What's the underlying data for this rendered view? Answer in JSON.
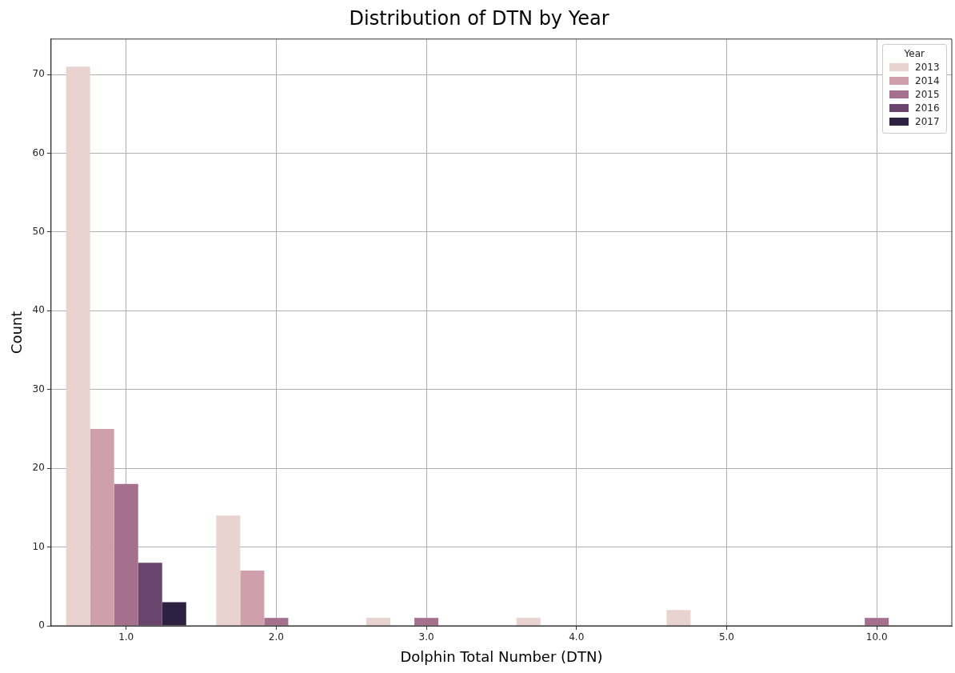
{
  "chart_data": {
    "type": "bar",
    "title": "Distribution of DTN by Year",
    "xlabel": "Dolphin Total Number (DTN)",
    "ylabel": "Count",
    "legend_title": "Year",
    "categories": [
      "1.0",
      "2.0",
      "3.0",
      "4.0",
      "5.0",
      "10.0"
    ],
    "series": [
      {
        "name": "2013",
        "color": "#e9d3d0",
        "values": [
          71,
          14,
          1,
          1,
          2,
          null
        ]
      },
      {
        "name": "2014",
        "color": "#cf9fab",
        "values": [
          25,
          7,
          null,
          null,
          null,
          null
        ]
      },
      {
        "name": "2015",
        "color": "#a4708d",
        "values": [
          18,
          1,
          1,
          null,
          null,
          1
        ]
      },
      {
        "name": "2016",
        "color": "#69456d",
        "values": [
          8,
          null,
          null,
          null,
          null,
          null
        ]
      },
      {
        "name": "2017",
        "color": "#2d2141",
        "values": [
          3,
          null,
          null,
          null,
          null,
          null
        ]
      }
    ],
    "ylim": [
      0,
      74.5
    ],
    "yticks": [
      0,
      10,
      20,
      30,
      40,
      50,
      60,
      70
    ],
    "grid": true,
    "legend": "top right"
  }
}
